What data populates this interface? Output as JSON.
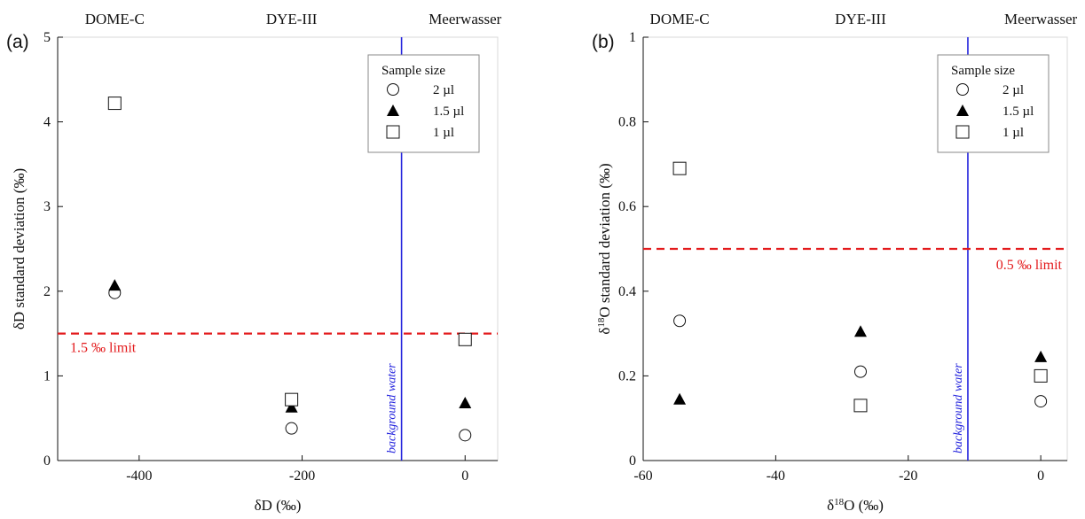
{
  "chart_data": [
    {
      "type": "scatter",
      "panel_label": "(a)",
      "xlabel": "δD (‰)",
      "ylabel": "δD standard deviation (‰)",
      "xlim": [
        -500,
        40
      ],
      "ylim": [
        0,
        5
      ],
      "xticks": [
        -400,
        -200,
        0
      ],
      "yticks": [
        0,
        1,
        2,
        3,
        4,
        5
      ],
      "xtick_labels": [
        "-400",
        "-200",
        "0"
      ],
      "ytick_labels": [
        "0",
        "1",
        "2",
        "3",
        "4",
        "5"
      ],
      "categories": [
        {
          "label": "DOME-C",
          "x": -430
        },
        {
          "label": "DYE-III",
          "x": -213
        },
        {
          "label": "Meerwasser",
          "x": 0
        }
      ],
      "legend": {
        "title": "Sample size",
        "position": "top-right"
      },
      "series": [
        {
          "name": "2 µl",
          "marker": "circle",
          "points": [
            [
              -430,
              1.98
            ],
            [
              -213,
              0.38
            ],
            [
              0,
              0.3
            ]
          ]
        },
        {
          "name": "1.5 µl",
          "marker": "triangle",
          "points": [
            [
              -430,
              2.07
            ],
            [
              -213,
              0.63
            ],
            [
              0,
              0.68
            ]
          ]
        },
        {
          "name": "1 µl",
          "marker": "square",
          "points": [
            [
              -430,
              4.22
            ],
            [
              -213,
              0.72
            ],
            [
              0,
              1.43
            ]
          ]
        }
      ],
      "limit": {
        "value": 1.5,
        "label": "1.5 ‰ limit",
        "color": "#e31a1c",
        "label_side": "left"
      },
      "background": {
        "x": -78,
        "label": "background water",
        "color": "#2222dd"
      }
    },
    {
      "type": "scatter",
      "panel_label": "(b)",
      "xlabel": "δ18O (‰)",
      "ylabel": "δ18O standard deviation (‰)",
      "xlim": [
        -60,
        4
      ],
      "ylim": [
        0,
        1
      ],
      "xticks": [
        -60,
        -40,
        -20,
        0
      ],
      "yticks": [
        0,
        0.2,
        0.4,
        0.6,
        0.8,
        1.0
      ],
      "xtick_labels": [
        "-60",
        "-40",
        "-20",
        "0"
      ],
      "ytick_labels": [
        "0",
        "0.2",
        "0.4",
        "0.6",
        "0.8",
        "1"
      ],
      "categories": [
        {
          "label": "DOME-C",
          "x": -54.5
        },
        {
          "label": "DYE-III",
          "x": -27.2
        },
        {
          "label": "Meerwasser",
          "x": 0
        }
      ],
      "legend": {
        "title": "Sample size",
        "position": "top-right"
      },
      "series": [
        {
          "name": "2 µl",
          "marker": "circle",
          "points": [
            [
              -54.5,
              0.33
            ],
            [
              -27.2,
              0.21
            ],
            [
              0,
              0.14
            ]
          ]
        },
        {
          "name": "1.5 µl",
          "marker": "triangle",
          "points": [
            [
              -54.5,
              0.145
            ],
            [
              -27.2,
              0.305
            ],
            [
              0,
              0.245
            ]
          ]
        },
        {
          "name": "1 µl",
          "marker": "square",
          "points": [
            [
              -54.5,
              0.69
            ],
            [
              -27.2,
              0.13
            ],
            [
              0,
              0.2
            ]
          ]
        }
      ],
      "limit": {
        "value": 0.5,
        "label": "0.5 ‰ limit",
        "color": "#e31a1c",
        "label_side": "right"
      },
      "background": {
        "x": -11,
        "label": "background water",
        "color": "#2222dd"
      }
    }
  ]
}
